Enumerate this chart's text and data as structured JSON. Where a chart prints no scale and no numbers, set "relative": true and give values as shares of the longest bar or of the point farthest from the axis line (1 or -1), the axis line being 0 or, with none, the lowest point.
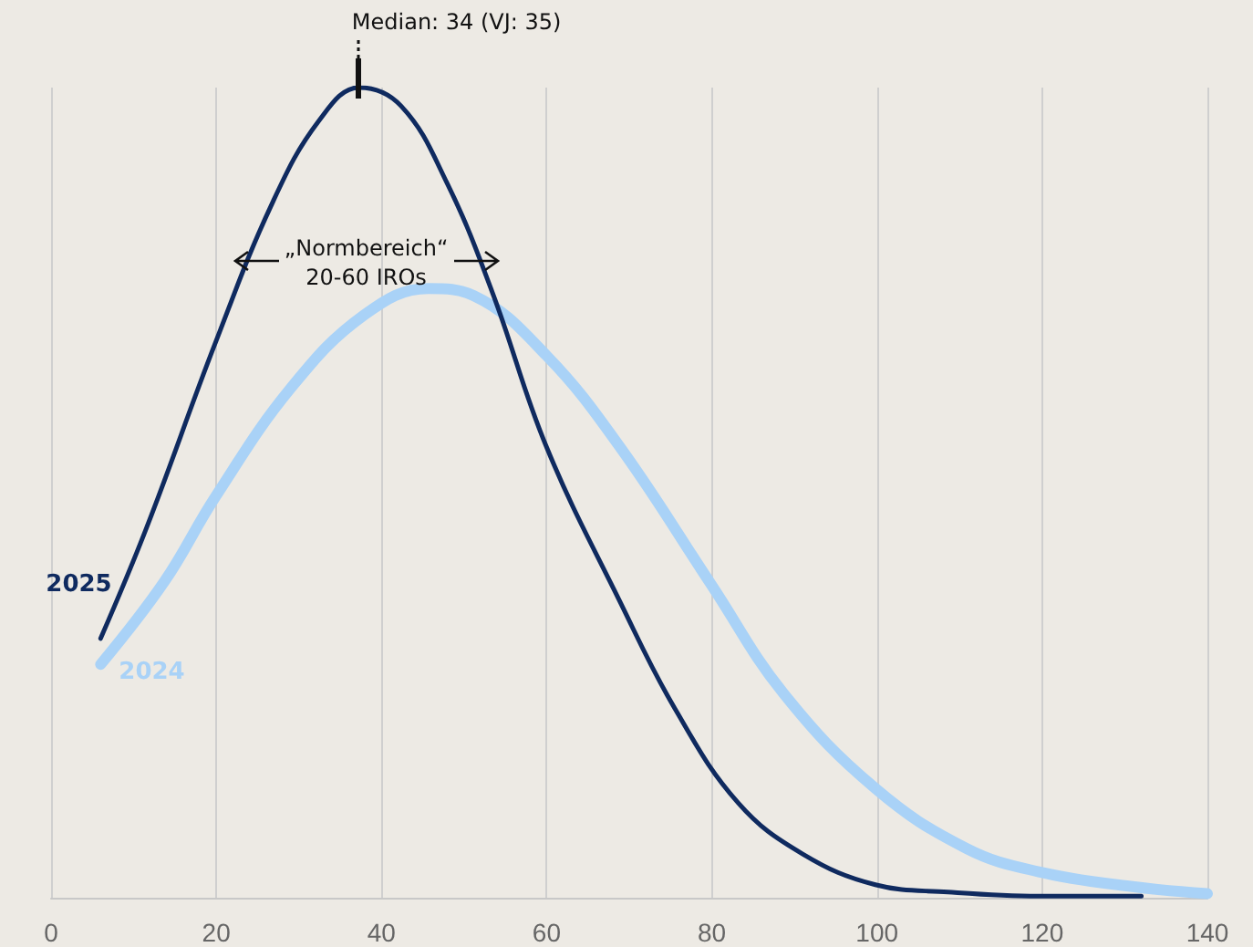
{
  "chart_data": {
    "type": "line",
    "relative": true,
    "xlim": [
      0,
      140
    ],
    "xticks": [
      0,
      20,
      40,
      60,
      80,
      100,
      120,
      140
    ],
    "grid": "x",
    "legend": false,
    "marker": "none",
    "line_style": "solid",
    "annotations": [
      "Median: 34 (VJ: 35)",
      "„Normbereich“\n20-60 IROs"
    ],
    "series": [
      {
        "name": "2025",
        "color": "#0f2a5f",
        "x": [
          6,
          11.5,
          19.9,
          26.9,
          32.5,
          37.3,
          42.4,
          47.9,
          53.4,
          60,
          68.9,
          75.5,
          83.2,
          91,
          99.8,
          108.6,
          119.6,
          132
        ],
        "values": [
          0.32,
          0.455,
          0.685,
          0.86,
          0.96,
          1,
          0.977,
          0.883,
          0.748,
          0.556,
          0.365,
          0.234,
          0.117,
          0.054,
          0.016,
          0.007,
          0.002,
          0.002
        ]
      },
      {
        "name": "2024",
        "color": "#a9d2f7",
        "x": [
          6,
          13.7,
          19.9,
          29.1,
          38,
          45.7,
          51.2,
          60,
          68.9,
          79.9,
          88.7,
          99.8,
          110.8,
          119.6,
          130.7,
          140
        ],
        "values": [
          0.288,
          0.39,
          0.495,
          0.63,
          0.72,
          0.752,
          0.743,
          0.669,
          0.556,
          0.387,
          0.252,
          0.135,
          0.061,
          0.032,
          0.014,
          0.005
        ]
      }
    ]
  }
}
